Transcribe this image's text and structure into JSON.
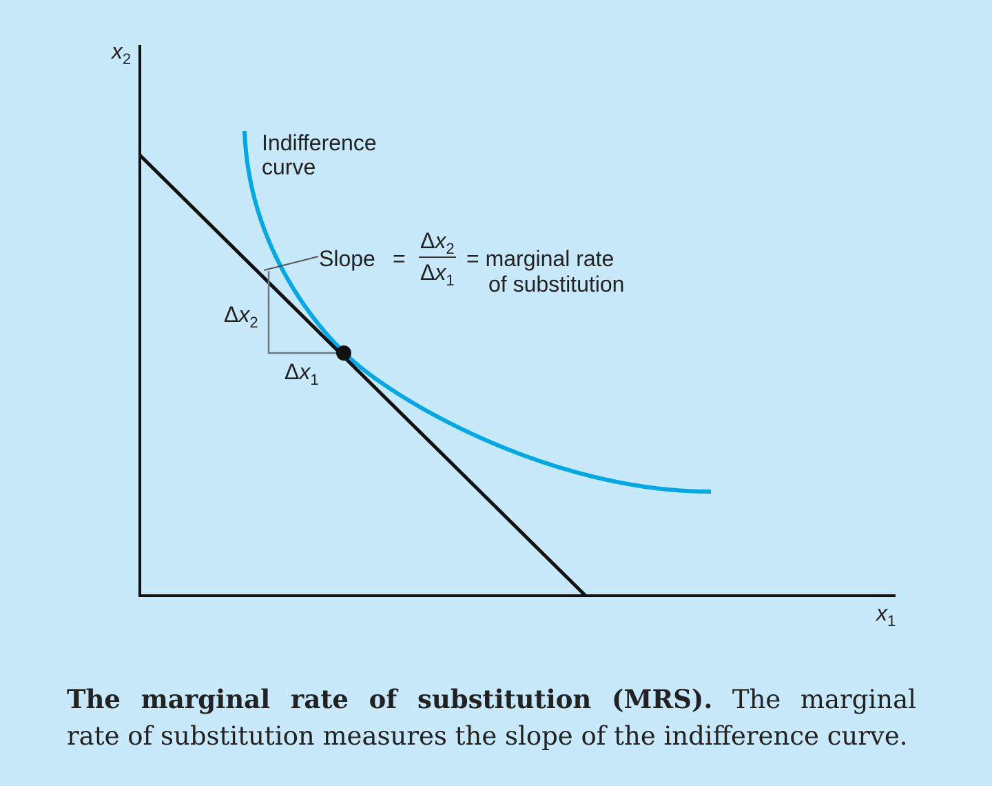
{
  "colors": {
    "background": "#c8e9f9",
    "indifference_curve": "#00a8e6",
    "budget_line": "#111111",
    "triangle": "#6a7a82"
  },
  "axes": {
    "y_label": {
      "var": "x",
      "sub": "2"
    },
    "x_label": {
      "var": "x",
      "sub": "1"
    }
  },
  "labels": {
    "curve_line1": "Indifference",
    "curve_line2": "curve",
    "slope_word": "Slope",
    "equals": "=",
    "frac_num_delta": "Δ",
    "frac_num_var": "x",
    "frac_num_sub": "2",
    "frac_den_delta": "Δ",
    "frac_den_var": "x",
    "frac_den_sub": "1",
    "mrs_line1": "= marginal rate",
    "mrs_line2": "of substitution",
    "dx2_delta": "Δ",
    "dx2_var": "x",
    "dx2_sub": "2",
    "dx1_delta": "Δ",
    "dx1_var": "x",
    "dx1_sub": "1"
  },
  "caption": {
    "bold": "The marginal rate of substitution (MRS).",
    "line1_rest": "The marginal",
    "line2": "rate of substitution measures the slope of the indifference curve."
  }
}
